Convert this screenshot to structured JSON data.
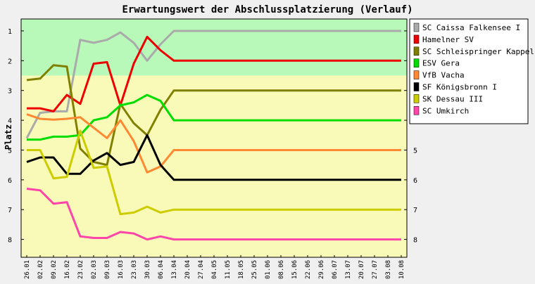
{
  "chart_data": {
    "type": "line",
    "title": "Erwartungswert der Abschlussplatzierung (Verlauf)",
    "ylabel": "Platz",
    "xlabel": "",
    "ylim": [
      0.6,
      8.6
    ],
    "y_inverted": true,
    "y_ticks": [
      1,
      2,
      3,
      4,
      5,
      6,
      7,
      8
    ],
    "grid": false,
    "legend_position": "right",
    "bands": [
      {
        "from": 0.6,
        "to": 2.5,
        "color": "#b8f8b8"
      },
      {
        "from": 2.5,
        "to": 8.6,
        "color": "#fafab8"
      }
    ],
    "categories": [
      "26.01",
      "02.02",
      "09.02",
      "16.02",
      "23.02",
      "02.03",
      "09.03",
      "16.03",
      "23.03",
      "30.03",
      "06.04",
      "13.04",
      "20.04",
      "27.04",
      "04.05",
      "11.05",
      "18.05",
      "25.05",
      "01.06",
      "08.06",
      "15.06",
      "22.06",
      "29.06",
      "06.07",
      "13.07",
      "20.07",
      "27.07",
      "03.08",
      "10.08"
    ],
    "series": [
      {
        "name": "SC Caissa Falkensee I",
        "color": "#aaaaaa",
        "values": [
          4.6,
          3.75,
          3.7,
          3.7,
          1.3,
          1.4,
          1.3,
          1.05,
          1.4,
          2.0,
          1.45,
          1.0,
          1,
          1,
          1,
          1,
          1,
          1,
          1,
          1,
          1,
          1,
          1,
          1,
          1,
          1,
          1,
          1,
          1
        ]
      },
      {
        "name": "Hamelner SV",
        "color": "#ee0000",
        "values": [
          3.6,
          3.6,
          3.7,
          3.15,
          3.45,
          2.1,
          2.05,
          3.5,
          2.1,
          1.2,
          1.65,
          2.0,
          2,
          2,
          2,
          2,
          2,
          2,
          2,
          2,
          2,
          2,
          2,
          2,
          2,
          2,
          2,
          2,
          2
        ]
      },
      {
        "name": "SC Schleispringer Kappeln",
        "color": "#808000",
        "values": [
          2.65,
          2.6,
          2.15,
          2.2,
          4.95,
          5.4,
          5.5,
          3.45,
          4.1,
          4.5,
          3.65,
          3.0,
          3,
          3,
          3,
          3,
          3,
          3,
          3,
          3,
          3,
          3,
          3,
          3,
          3,
          3,
          3,
          3,
          3
        ]
      },
      {
        "name": "ESV Gera",
        "color": "#00dd00",
        "values": [
          4.65,
          4.65,
          4.55,
          4.55,
          4.5,
          4.0,
          3.9,
          3.5,
          3.4,
          3.15,
          3.35,
          4.0,
          4,
          4,
          4,
          4,
          4,
          4,
          4,
          4,
          4,
          4,
          4,
          4,
          4,
          4,
          4,
          4,
          4
        ]
      },
      {
        "name": "VfB Vacha",
        "color": "#ff8833",
        "values": [
          3.8,
          3.95,
          3.98,
          3.95,
          3.9,
          4.25,
          4.6,
          4.0,
          4.7,
          5.75,
          5.55,
          5.0,
          5,
          5,
          5,
          5,
          5,
          5,
          5,
          5,
          5,
          5,
          5,
          5,
          5,
          5,
          5,
          5,
          5
        ]
      },
      {
        "name": "SF Königsbronn I",
        "color": "#000000",
        "values": [
          5.4,
          5.25,
          5.25,
          5.8,
          5.8,
          5.35,
          5.1,
          5.5,
          5.4,
          4.5,
          5.5,
          6.0,
          6,
          6,
          6,
          6,
          6,
          6,
          6,
          6,
          6,
          6,
          6,
          6,
          6,
          6,
          6,
          6,
          6
        ]
      },
      {
        "name": "SK Dessau III",
        "color": "#cccc00",
        "values": [
          5.0,
          5.0,
          5.95,
          5.9,
          4.35,
          5.6,
          5.55,
          7.15,
          7.1,
          6.9,
          7.1,
          7.0,
          7,
          7,
          7,
          7,
          7,
          7,
          7,
          7,
          7,
          7,
          7,
          7,
          7,
          7,
          7,
          7,
          7
        ]
      },
      {
        "name": "SC Umkirch",
        "color": "#ff44aa",
        "values": [
          6.3,
          6.35,
          6.8,
          6.75,
          7.9,
          7.95,
          7.95,
          7.75,
          7.8,
          8.0,
          7.9,
          8.0,
          8,
          8,
          8,
          8,
          8,
          8,
          8,
          8,
          8,
          8,
          8,
          8,
          8,
          8,
          8,
          8,
          8
        ]
      }
    ]
  }
}
